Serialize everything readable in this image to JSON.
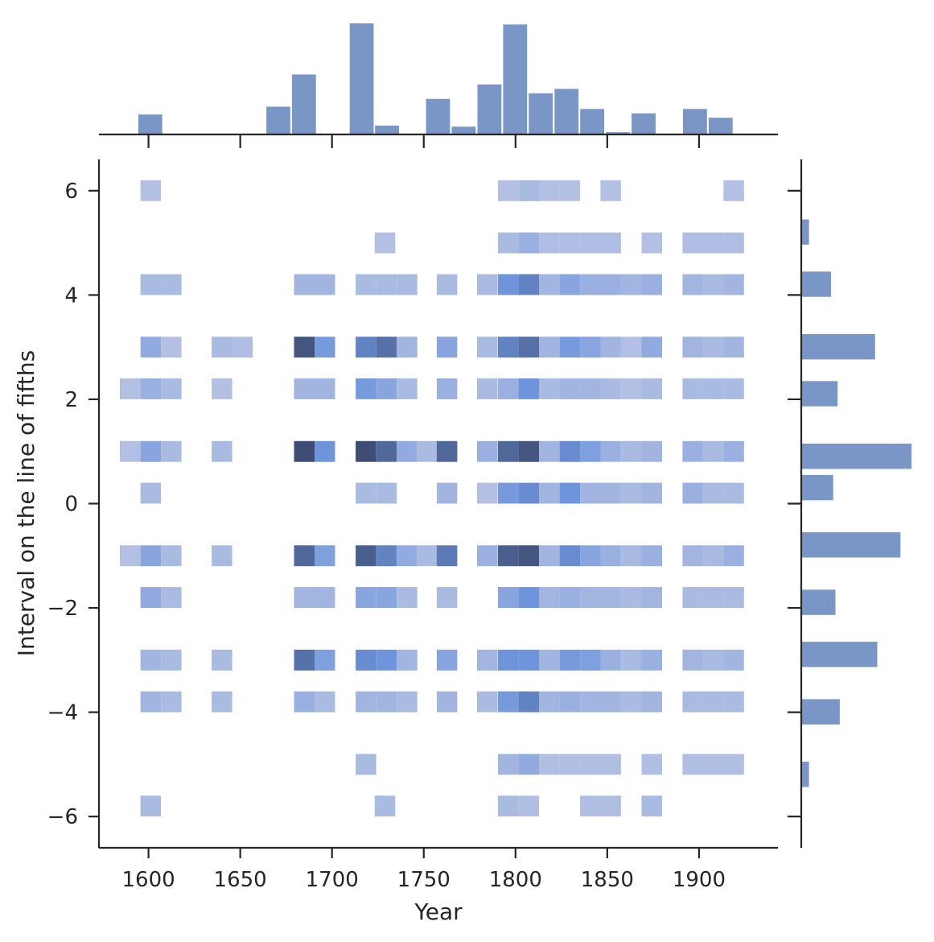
{
  "chart_data": {
    "type": "heatmap",
    "title": "",
    "xlabel": "Year",
    "ylabel": "Interval on the line of fifths",
    "xlim": [
      1573,
      1943
    ],
    "ylim": [
      -6.6,
      6.6
    ],
    "xticks": [
      1600,
      1650,
      1700,
      1750,
      1800,
      1850,
      1900
    ],
    "yticks": [
      6,
      4,
      2,
      0,
      -2,
      -4,
      -6
    ],
    "xtick_labels": [
      "1600",
      "1650",
      "1700",
      "1750",
      "1800",
      "1850",
      "1900"
    ],
    "ytick_labels": [
      "6",
      "4",
      "2",
      "0",
      "−2",
      "−4",
      "−6"
    ],
    "x_bin_width": 11.2,
    "x_bin_start": 1589.6,
    "y_bin_height": 0.4,
    "grid": false,
    "colors": {
      "marginal": "#7a96c6",
      "cell_light": "#b3c0e3",
      "cell_mid": "#6e95dc",
      "cell_dark": "#3e4d73",
      "axis": "#262626"
    },
    "heatmap_cells": [
      {
        "y": 6,
        "cells": [
          [
            1601.2,
            0.2
          ],
          [
            1796.0,
            0.2
          ],
          [
            1807.2,
            0.25
          ],
          [
            1818.4,
            0.2
          ],
          [
            1829.6,
            0.2
          ],
          [
            1851.9,
            0.2
          ],
          [
            1918.9,
            0.2
          ]
        ]
      },
      {
        "y": 5,
        "cells": [
          [
            1728.9,
            0.2
          ],
          [
            1796.0,
            0.25
          ],
          [
            1807.2,
            0.35
          ],
          [
            1818.4,
            0.22
          ],
          [
            1829.6,
            0.22
          ],
          [
            1840.8,
            0.22
          ],
          [
            1851.9,
            0.22
          ],
          [
            1874.3,
            0.2
          ],
          [
            1896.6,
            0.22
          ],
          [
            1907.8,
            0.22
          ],
          [
            1918.9,
            0.22
          ]
        ]
      },
      {
        "y": 4.2,
        "cells": [
          [
            1601.2,
            0.25
          ],
          [
            1612.4,
            0.25
          ],
          [
            1684.9,
            0.3
          ],
          [
            1696.1,
            0.3
          ],
          [
            1718.5,
            0.25
          ],
          [
            1729.7,
            0.25
          ],
          [
            1740.9,
            0.25
          ],
          [
            1762.7,
            0.25
          ],
          [
            1784.6,
            0.25
          ],
          [
            1796.0,
            0.6
          ],
          [
            1807.2,
            0.7
          ],
          [
            1818.4,
            0.3
          ],
          [
            1829.6,
            0.45
          ],
          [
            1840.8,
            0.35
          ],
          [
            1851.9,
            0.35
          ],
          [
            1863.1,
            0.3
          ],
          [
            1874.3,
            0.35
          ],
          [
            1896.6,
            0.3
          ],
          [
            1907.8,
            0.25
          ],
          [
            1918.9,
            0.3
          ]
        ]
      },
      {
        "y": 3,
        "cells": [
          [
            1601.2,
            0.4
          ],
          [
            1612.4,
            0.2
          ],
          [
            1640.0,
            0.25
          ],
          [
            1651.2,
            0.22
          ],
          [
            1684.9,
            0.95
          ],
          [
            1696.1,
            0.55
          ],
          [
            1718.5,
            0.7
          ],
          [
            1729.7,
            0.8
          ],
          [
            1740.9,
            0.3
          ],
          [
            1762.7,
            0.45
          ],
          [
            1784.6,
            0.25
          ],
          [
            1796.0,
            0.7
          ],
          [
            1807.2,
            0.8
          ],
          [
            1818.4,
            0.3
          ],
          [
            1829.6,
            0.55
          ],
          [
            1840.8,
            0.45
          ],
          [
            1851.9,
            0.3
          ],
          [
            1863.1,
            0.2
          ],
          [
            1874.3,
            0.4
          ],
          [
            1896.6,
            0.3
          ],
          [
            1907.8,
            0.25
          ],
          [
            1918.9,
            0.3
          ]
        ]
      },
      {
        "y": 2.2,
        "cells": [
          [
            1590.0,
            0.2
          ],
          [
            1601.2,
            0.35
          ],
          [
            1612.4,
            0.25
          ],
          [
            1640.0,
            0.2
          ],
          [
            1684.9,
            0.3
          ],
          [
            1696.1,
            0.3
          ],
          [
            1718.5,
            0.55
          ],
          [
            1729.7,
            0.45
          ],
          [
            1740.9,
            0.25
          ],
          [
            1762.7,
            0.35
          ],
          [
            1784.6,
            0.25
          ],
          [
            1796.0,
            0.35
          ],
          [
            1807.2,
            0.6
          ],
          [
            1818.4,
            0.25
          ],
          [
            1829.6,
            0.3
          ],
          [
            1840.8,
            0.3
          ],
          [
            1851.9,
            0.25
          ],
          [
            1863.1,
            0.2
          ],
          [
            1874.3,
            0.25
          ],
          [
            1896.6,
            0.25
          ],
          [
            1907.8,
            0.25
          ],
          [
            1918.9,
            0.25
          ]
        ]
      },
      {
        "y": 1,
        "cells": [
          [
            1590.0,
            0.2
          ],
          [
            1601.2,
            0.45
          ],
          [
            1612.4,
            0.25
          ],
          [
            1640.0,
            0.25
          ],
          [
            1684.9,
            1.0
          ],
          [
            1696.1,
            0.6
          ],
          [
            1718.5,
            1.0
          ],
          [
            1729.7,
            0.85
          ],
          [
            1740.9,
            0.4
          ],
          [
            1751.8,
            0.25
          ],
          [
            1762.7,
            0.85
          ],
          [
            1784.6,
            0.35
          ],
          [
            1796.0,
            0.85
          ],
          [
            1807.2,
            0.95
          ],
          [
            1818.4,
            0.3
          ],
          [
            1829.6,
            0.65
          ],
          [
            1840.8,
            0.5
          ],
          [
            1851.9,
            0.35
          ],
          [
            1863.1,
            0.25
          ],
          [
            1874.3,
            0.3
          ],
          [
            1896.6,
            0.35
          ],
          [
            1907.8,
            0.25
          ],
          [
            1918.9,
            0.35
          ]
        ]
      },
      {
        "y": 0.2,
        "cells": [
          [
            1601.2,
            0.25
          ],
          [
            1718.5,
            0.25
          ],
          [
            1729.7,
            0.25
          ],
          [
            1762.7,
            0.3
          ],
          [
            1784.6,
            0.2
          ],
          [
            1796.0,
            0.55
          ],
          [
            1807.2,
            0.65
          ],
          [
            1818.4,
            0.3
          ],
          [
            1829.6,
            0.6
          ],
          [
            1840.8,
            0.3
          ],
          [
            1851.9,
            0.3
          ],
          [
            1863.1,
            0.25
          ],
          [
            1874.3,
            0.3
          ],
          [
            1896.6,
            0.35
          ],
          [
            1907.8,
            0.25
          ],
          [
            1918.9,
            0.25
          ]
        ]
      },
      {
        "y": -1,
        "cells": [
          [
            1590.0,
            0.2
          ],
          [
            1601.2,
            0.45
          ],
          [
            1612.4,
            0.25
          ],
          [
            1640.0,
            0.25
          ],
          [
            1684.9,
            0.85
          ],
          [
            1696.1,
            0.5
          ],
          [
            1718.5,
            0.9
          ],
          [
            1729.7,
            0.7
          ],
          [
            1740.9,
            0.4
          ],
          [
            1751.8,
            0.25
          ],
          [
            1762.7,
            0.75
          ],
          [
            1784.6,
            0.35
          ],
          [
            1796.0,
            0.9
          ],
          [
            1807.2,
            0.95
          ],
          [
            1818.4,
            0.3
          ],
          [
            1829.6,
            0.65
          ],
          [
            1840.8,
            0.45
          ],
          [
            1851.9,
            0.35
          ],
          [
            1863.1,
            0.25
          ],
          [
            1874.3,
            0.35
          ],
          [
            1896.6,
            0.3
          ],
          [
            1907.8,
            0.25
          ],
          [
            1918.9,
            0.35
          ]
        ]
      },
      {
        "y": -1.8,
        "cells": [
          [
            1601.2,
            0.4
          ],
          [
            1612.4,
            0.25
          ],
          [
            1684.9,
            0.3
          ],
          [
            1696.1,
            0.3
          ],
          [
            1718.5,
            0.45
          ],
          [
            1729.7,
            0.45
          ],
          [
            1740.9,
            0.25
          ],
          [
            1762.7,
            0.25
          ],
          [
            1796.0,
            0.45
          ],
          [
            1807.2,
            0.6
          ],
          [
            1818.4,
            0.3
          ],
          [
            1829.6,
            0.35
          ],
          [
            1840.8,
            0.3
          ],
          [
            1851.9,
            0.3
          ],
          [
            1863.1,
            0.25
          ],
          [
            1874.3,
            0.3
          ],
          [
            1896.6,
            0.25
          ],
          [
            1907.8,
            0.25
          ],
          [
            1918.9,
            0.25
          ]
        ]
      },
      {
        "y": -3,
        "cells": [
          [
            1601.2,
            0.3
          ],
          [
            1612.4,
            0.25
          ],
          [
            1640.0,
            0.25
          ],
          [
            1684.9,
            0.8
          ],
          [
            1696.1,
            0.5
          ],
          [
            1718.5,
            0.65
          ],
          [
            1729.7,
            0.6
          ],
          [
            1740.9,
            0.3
          ],
          [
            1762.7,
            0.45
          ],
          [
            1784.6,
            0.3
          ],
          [
            1796.0,
            0.6
          ],
          [
            1807.2,
            0.6
          ],
          [
            1818.4,
            0.3
          ],
          [
            1829.6,
            0.55
          ],
          [
            1840.8,
            0.5
          ],
          [
            1851.9,
            0.35
          ],
          [
            1863.1,
            0.25
          ],
          [
            1874.3,
            0.35
          ],
          [
            1896.6,
            0.3
          ],
          [
            1907.8,
            0.25
          ],
          [
            1918.9,
            0.3
          ]
        ]
      },
      {
        "y": -3.8,
        "cells": [
          [
            1601.2,
            0.3
          ],
          [
            1612.4,
            0.25
          ],
          [
            1640.0,
            0.25
          ],
          [
            1684.9,
            0.35
          ],
          [
            1696.1,
            0.25
          ],
          [
            1718.5,
            0.3
          ],
          [
            1729.7,
            0.3
          ],
          [
            1740.9,
            0.25
          ],
          [
            1762.7,
            0.3
          ],
          [
            1784.6,
            0.25
          ],
          [
            1796.0,
            0.55
          ],
          [
            1807.2,
            0.7
          ],
          [
            1818.4,
            0.3
          ],
          [
            1829.6,
            0.35
          ],
          [
            1840.8,
            0.3
          ],
          [
            1851.9,
            0.3
          ],
          [
            1863.1,
            0.25
          ],
          [
            1874.3,
            0.3
          ],
          [
            1896.6,
            0.25
          ],
          [
            1907.8,
            0.25
          ],
          [
            1918.9,
            0.25
          ]
        ]
      },
      {
        "y": -5,
        "cells": [
          [
            1718.5,
            0.25
          ],
          [
            1796.0,
            0.3
          ],
          [
            1807.2,
            0.4
          ],
          [
            1818.4,
            0.22
          ],
          [
            1829.6,
            0.22
          ],
          [
            1840.8,
            0.22
          ],
          [
            1851.9,
            0.22
          ],
          [
            1874.3,
            0.22
          ],
          [
            1896.6,
            0.22
          ],
          [
            1907.8,
            0.22
          ],
          [
            1918.9,
            0.22
          ]
        ]
      },
      {
        "y": -5.8,
        "cells": [
          [
            1601.2,
            0.25
          ],
          [
            1728.9,
            0.25
          ],
          [
            1796.0,
            0.25
          ],
          [
            1807.2,
            0.22
          ],
          [
            1840.8,
            0.22
          ],
          [
            1851.9,
            0.22
          ],
          [
            1874.3,
            0.25
          ]
        ]
      }
    ],
    "x_marginal": {
      "type": "bar",
      "x": [
        1601.2,
        1671.0,
        1684.9,
        1716.4,
        1730.2,
        1758.0,
        1772.0,
        1786.0,
        1800.0,
        1814.0,
        1828.0,
        1842.0,
        1856.0,
        1870.0,
        1898.0,
        1912.0
      ],
      "values": [
        0.18,
        0.25,
        0.54,
        1.0,
        0.08,
        0.32,
        0.07,
        0.45,
        0.99,
        0.37,
        0.41,
        0.23,
        0.02,
        0.19,
        0.23,
        0.15
      ]
    },
    "y_marginal": {
      "type": "bar",
      "y": [
        5.2,
        4.2,
        3,
        2.1,
        0.9,
        0.3,
        -0.8,
        -1.9,
        -2.9,
        -4,
        -5.2
      ],
      "values": [
        0.07,
        0.27,
        0.67,
        0.33,
        1.0,
        0.29,
        0.9,
        0.31,
        0.69,
        0.35,
        0.07
      ]
    }
  }
}
